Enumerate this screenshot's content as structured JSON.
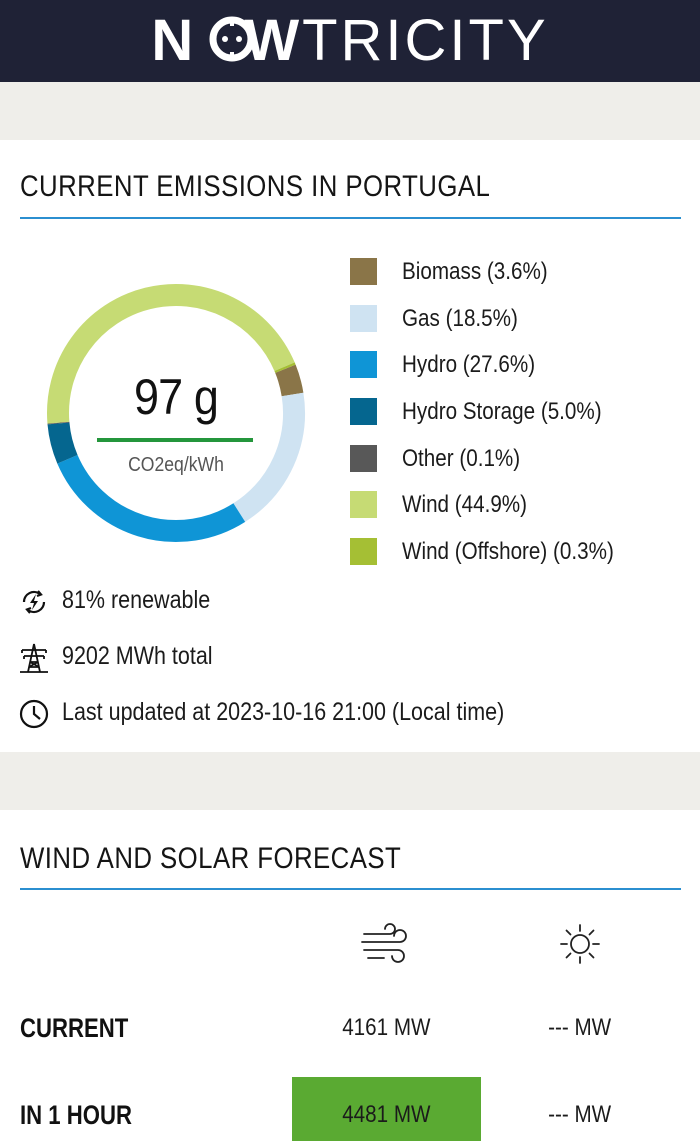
{
  "header": {
    "logo_text": "NOWTRICITY",
    "background_color": "#1f2236"
  },
  "emissions": {
    "title": "CURRENT EMISSIONS IN PORTUGAL",
    "value": "97 g",
    "unit": "CO2eq/kWh",
    "sources": [
      {
        "label": "Biomass (3.6%)",
        "share": 3.6,
        "color": "#8a7548"
      },
      {
        "label": "Gas (18.5%)",
        "share": 18.5,
        "color": "#cfe3f2"
      },
      {
        "label": "Hydro (27.6%)",
        "share": 27.6,
        "color": "#0f95d6"
      },
      {
        "label": "Hydro Storage (5.0%)",
        "share": 5.0,
        "color": "#05668f"
      },
      {
        "label": "Other (0.1%)",
        "share": 0.1,
        "color": "#585858"
      },
      {
        "label": "Wind (44.9%)",
        "share": 44.9,
        "color": "#c6db74"
      },
      {
        "label": "Wind (Offshore) (0.3%)",
        "share": 0.3,
        "color": "#a5bf34"
      }
    ],
    "stats": {
      "renewable": "81% renewable",
      "total": "9202 MWh total",
      "updated": "Last updated at 2023-10-16 21:00 (Local time)"
    }
  },
  "forecast": {
    "title": "WIND AND SOLAR FORECAST",
    "columns": [
      {
        "icon": "wind-icon"
      },
      {
        "icon": "sun-icon"
      }
    ],
    "rows": [
      {
        "label": "CURRENT",
        "wind": "4161 MW",
        "solar": "--- MW",
        "wind_highlight": false
      },
      {
        "label": "IN 1 HOUR",
        "wind": "4481 MW",
        "solar": "--- MW",
        "wind_highlight": true
      }
    ],
    "highlight_color": "#5aaa32"
  }
}
